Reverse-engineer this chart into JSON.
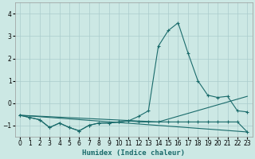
{
  "xlabel": "Humidex (Indice chaleur)",
  "background_color": "#cce8e4",
  "grid_color": "#aacccc",
  "line_color": "#1a6b6b",
  "xlim": [
    -0.5,
    23.5
  ],
  "ylim": [
    -1.5,
    4.5
  ],
  "yticks": [
    -1,
    0,
    1,
    2,
    3,
    4
  ],
  "xticks": [
    0,
    1,
    2,
    3,
    4,
    5,
    6,
    7,
    8,
    9,
    10,
    11,
    12,
    13,
    14,
    15,
    16,
    17,
    18,
    19,
    20,
    21,
    22,
    23
  ],
  "series_main_x": [
    0,
    1,
    2,
    3,
    4,
    5,
    6,
    7,
    8,
    9,
    10,
    11,
    12,
    13,
    14,
    15,
    16,
    17,
    18,
    19,
    20,
    21,
    22,
    23
  ],
  "series_main_y": [
    -0.55,
    -0.65,
    -0.75,
    -1.1,
    -0.9,
    -1.1,
    -1.25,
    -1.0,
    -0.9,
    -0.9,
    -0.85,
    -0.8,
    -0.6,
    -0.35,
    2.55,
    3.25,
    3.6,
    2.25,
    1.0,
    0.35,
    0.25,
    0.3,
    -0.35,
    -0.4
  ],
  "series_trend1_x": [
    0,
    23
  ],
  "series_trend1_y": [
    -0.55,
    -1.3
  ],
  "series_trend2_x": [
    0,
    14,
    23
  ],
  "series_trend2_y": [
    -0.55,
    -0.85,
    0.3
  ],
  "series_flat_x": [
    0,
    1,
    2,
    3,
    4,
    5,
    6,
    7,
    8,
    9,
    10,
    11,
    12,
    13,
    14,
    15,
    16,
    17,
    18,
    19,
    20,
    21,
    22,
    23
  ],
  "series_flat_y": [
    -0.55,
    -0.65,
    -0.75,
    -1.1,
    -0.9,
    -1.1,
    -1.25,
    -1.0,
    -0.9,
    -0.9,
    -0.85,
    -0.8,
    -0.85,
    -0.85,
    -0.85,
    -0.85,
    -0.85,
    -0.85,
    -0.85,
    -0.85,
    -0.85,
    -0.85,
    -0.85,
    -1.3
  ]
}
